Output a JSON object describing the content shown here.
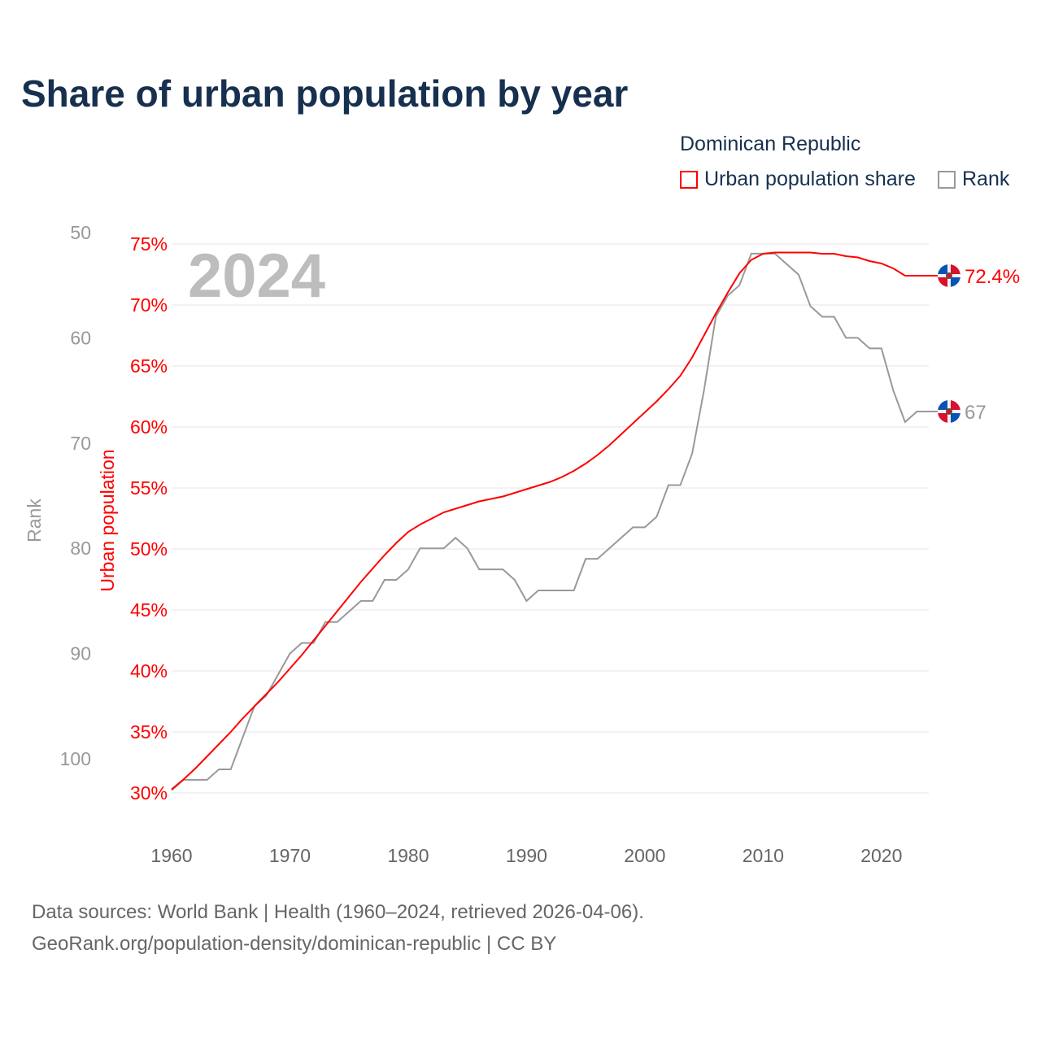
{
  "title": "Share of urban population by year",
  "legend": {
    "title": "Dominican Republic",
    "items": [
      {
        "label": "Urban population share",
        "color": "#ff0000"
      },
      {
        "label": "Rank",
        "color": "#999999"
      }
    ]
  },
  "big_year": "2024",
  "end_labels": {
    "urban": "72.4%",
    "rank": "67"
  },
  "source": {
    "line1": "Data sources: World Bank | Health (1960–2024, retrieved 2026-04-06).",
    "line2": "GeoRank.org/population-density/dominican-republic | CC BY"
  },
  "chart_data": {
    "type": "line",
    "title": "Share of urban population by year",
    "xlabel": "",
    "ylabel": "Urban population",
    "y2label": "Rank",
    "xlim": [
      1960,
      2024
    ],
    "ylim": [
      30,
      75
    ],
    "y2lim": [
      50,
      100
    ],
    "x_ticks": [
      1960,
      1970,
      1980,
      1990,
      2000,
      2010,
      2020
    ],
    "y_ticks": [
      "30%",
      "35%",
      "40%",
      "45%",
      "50%",
      "55%",
      "60%",
      "65%",
      "70%",
      "75%"
    ],
    "y2_ticks": [
      "50",
      "60",
      "70",
      "80",
      "90",
      "100"
    ],
    "grid": true,
    "legend_position": "top-right",
    "x": [
      1960,
      1961,
      1962,
      1963,
      1964,
      1965,
      1966,
      1967,
      1968,
      1969,
      1970,
      1971,
      1972,
      1973,
      1974,
      1975,
      1976,
      1977,
      1978,
      1979,
      1980,
      1981,
      1982,
      1983,
      1984,
      1985,
      1986,
      1987,
      1988,
      1989,
      1990,
      1991,
      1992,
      1993,
      1994,
      1995,
      1996,
      1997,
      1998,
      1999,
      2000,
      2001,
      2002,
      2003,
      2004,
      2005,
      2006,
      2007,
      2008,
      2009,
      2010,
      2011,
      2012,
      2013,
      2014,
      2015,
      2016,
      2017,
      2018,
      2019,
      2020,
      2021,
      2022,
      2023,
      2024
    ],
    "series": [
      {
        "name": "Urban population share",
        "axis": "left",
        "color": "#ff0000",
        "values": [
          30.3,
          31.1,
          32.0,
          33.0,
          34.0,
          35.0,
          36.1,
          37.1,
          38.1,
          39.1,
          40.2,
          41.3,
          42.5,
          43.7,
          44.9,
          46.1,
          47.3,
          48.4,
          49.5,
          50.5,
          51.4,
          52.0,
          52.5,
          53.0,
          53.3,
          53.6,
          53.9,
          54.1,
          54.3,
          54.6,
          54.9,
          55.2,
          55.5,
          55.9,
          56.4,
          57.0,
          57.7,
          58.5,
          59.4,
          60.3,
          61.2,
          62.1,
          63.1,
          64.2,
          65.7,
          67.5,
          69.3,
          71.0,
          72.6,
          73.7,
          74.2,
          74.3,
          74.3,
          74.3,
          74.3,
          74.2,
          74.2,
          74.0,
          73.9,
          73.6,
          73.4,
          73.0,
          72.4,
          72.4,
          72.4
        ]
      },
      {
        "name": "Rank",
        "axis": "right",
        "color": "#999999",
        "values": [
          103,
          102,
          102,
          102,
          101,
          101,
          98,
          95,
          94,
          92,
          90,
          89,
          89,
          87,
          87,
          86,
          85,
          85,
          83,
          83,
          82,
          80,
          80,
          80,
          79,
          80,
          82,
          82,
          82,
          83,
          85,
          84,
          84,
          84,
          84,
          81,
          81,
          80,
          79,
          78,
          78,
          77,
          74,
          74,
          71,
          65,
          58,
          56,
          55,
          52,
          52,
          52,
          53,
          54,
          57,
          58,
          58,
          60,
          60,
          61,
          61,
          65,
          68,
          67,
          67
        ]
      }
    ]
  }
}
